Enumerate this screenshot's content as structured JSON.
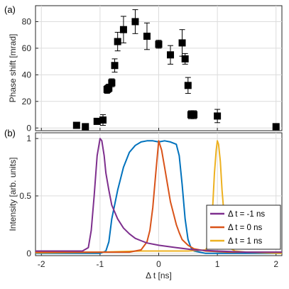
{
  "chart_data": [
    {
      "panel": "(a)",
      "type": "scatter",
      "ylabel": "Phase shift [mrad]",
      "xlim": [
        -2.1,
        2.1
      ],
      "ylim": [
        -2,
        92
      ],
      "xticks": [
        -2,
        -1,
        0,
        1,
        2
      ],
      "yticks": [
        0,
        20,
        40,
        60,
        80
      ],
      "grid": true,
      "points": [
        {
          "x": -1.4,
          "y": 2,
          "err": 0
        },
        {
          "x": -1.25,
          "y": 1,
          "err": 0
        },
        {
          "x": -1.05,
          "y": 5,
          "err": 1
        },
        {
          "x": -0.95,
          "y": 6,
          "err": 4
        },
        {
          "x": -0.88,
          "y": 29,
          "err": 3
        },
        {
          "x": -0.85,
          "y": 30,
          "err": 3
        },
        {
          "x": -0.8,
          "y": 34,
          "err": 3
        },
        {
          "x": -0.75,
          "y": 47,
          "err": 5
        },
        {
          "x": -0.7,
          "y": 65,
          "err": 7
        },
        {
          "x": -0.6,
          "y": 74,
          "err": 10
        },
        {
          "x": -0.4,
          "y": 80,
          "err": 9
        },
        {
          "x": -0.2,
          "y": 69,
          "err": 10
        },
        {
          "x": 0.0,
          "y": 63,
          "err": 3
        },
        {
          "x": 0.2,
          "y": 55,
          "err": 7
        },
        {
          "x": 0.4,
          "y": 64,
          "err": 10
        },
        {
          "x": 0.45,
          "y": 52,
          "err": 4
        },
        {
          "x": 0.5,
          "y": 32,
          "err": 6
        },
        {
          "x": 0.55,
          "y": 10,
          "err": 3
        },
        {
          "x": 0.6,
          "y": 10,
          "err": 3
        },
        {
          "x": 1.0,
          "y": 9,
          "err": 5
        },
        {
          "x": 2.0,
          "y": 1,
          "err": 1
        }
      ]
    },
    {
      "panel": "(b)",
      "type": "line",
      "xlabel": "Δ t [ns]",
      "ylabel": "Intensity [arb. units]",
      "xlim": [
        -2.1,
        2.1
      ],
      "ylim": [
        -0.02,
        1.05
      ],
      "xticks": [
        -2,
        -1,
        0,
        1,
        2
      ],
      "yticks": [
        0,
        0.5,
        1
      ],
      "ytick_labels": [
        "0",
        "0.5",
        "1"
      ],
      "grid": true,
      "legend_position": "bottom-right",
      "series": [
        {
          "name": "Δ t = -1 ns",
          "color": "#7e2f8e",
          "x": [
            -2.1,
            -1.6,
            -1.3,
            -1.2,
            -1.15,
            -1.1,
            -1.05,
            -1.0,
            -0.97,
            -0.93,
            -0.9,
            -0.85,
            -0.8,
            -0.7,
            -0.6,
            -0.5,
            -0.4,
            -0.3,
            -0.2,
            0.0,
            0.3,
            0.6,
            1.0,
            1.5,
            2.1
          ],
          "y": [
            0.02,
            0.02,
            0.02,
            0.05,
            0.2,
            0.5,
            0.85,
            1.0,
            0.98,
            0.85,
            0.7,
            0.55,
            0.42,
            0.3,
            0.22,
            0.17,
            0.13,
            0.11,
            0.09,
            0.07,
            0.05,
            0.03,
            0.02,
            0.01,
            0.01
          ]
        },
        {
          "name": "Δ t = 0 ns",
          "color": "#d95319",
          "x": [
            -2.1,
            -0.5,
            -0.3,
            -0.2,
            -0.15,
            -0.1,
            -0.05,
            0.0,
            0.05,
            0.1,
            0.15,
            0.2,
            0.25,
            0.3,
            0.35,
            0.4,
            0.5,
            0.6,
            0.8,
            1.2,
            2.1
          ],
          "y": [
            0.01,
            0.01,
            0.03,
            0.1,
            0.2,
            0.4,
            0.7,
            0.98,
            0.9,
            0.75,
            0.6,
            0.45,
            0.35,
            0.25,
            0.18,
            0.12,
            0.07,
            0.04,
            0.02,
            0.01,
            0.01
          ]
        },
        {
          "name": "Δ t = 1 ns",
          "color": "#edb120",
          "x": [
            -2.1,
            -1.0,
            -0.3,
            0.5,
            0.8,
            0.88,
            0.92,
            0.95,
            0.98,
            1.0,
            1.02,
            1.05,
            1.08,
            1.12,
            1.15,
            1.2,
            1.3,
            1.5,
            2.1
          ],
          "y": [
            0.005,
            0.01,
            0.02,
            0.02,
            0.03,
            0.1,
            0.4,
            0.7,
            0.9,
            0.98,
            0.95,
            0.8,
            0.55,
            0.3,
            0.12,
            0.05,
            0.02,
            0.01,
            0.0
          ]
        },
        {
          "name": "",
          "color": "#0072bd",
          "x": [
            -2.1,
            -1.2,
            -1.0,
            -0.9,
            -0.85,
            -0.8,
            -0.7,
            -0.6,
            -0.5,
            -0.4,
            -0.3,
            -0.2,
            -0.1,
            0.0,
            0.1,
            0.2,
            0.3,
            0.35,
            0.4,
            0.45,
            0.5,
            0.55,
            0.6,
            0.7,
            0.8,
            0.9,
            1.0,
            1.2,
            1.5,
            2.1
          ],
          "y": [
            0.0,
            0.0,
            0.0,
            0.02,
            0.1,
            0.3,
            0.55,
            0.75,
            0.88,
            0.94,
            0.97,
            0.98,
            0.98,
            0.97,
            0.98,
            0.97,
            0.95,
            0.85,
            0.6,
            0.3,
            0.12,
            0.05,
            0.02,
            0.01,
            0.0,
            0.0,
            0.0,
            0.0,
            0.0,
            0.0
          ]
        }
      ]
    }
  ]
}
